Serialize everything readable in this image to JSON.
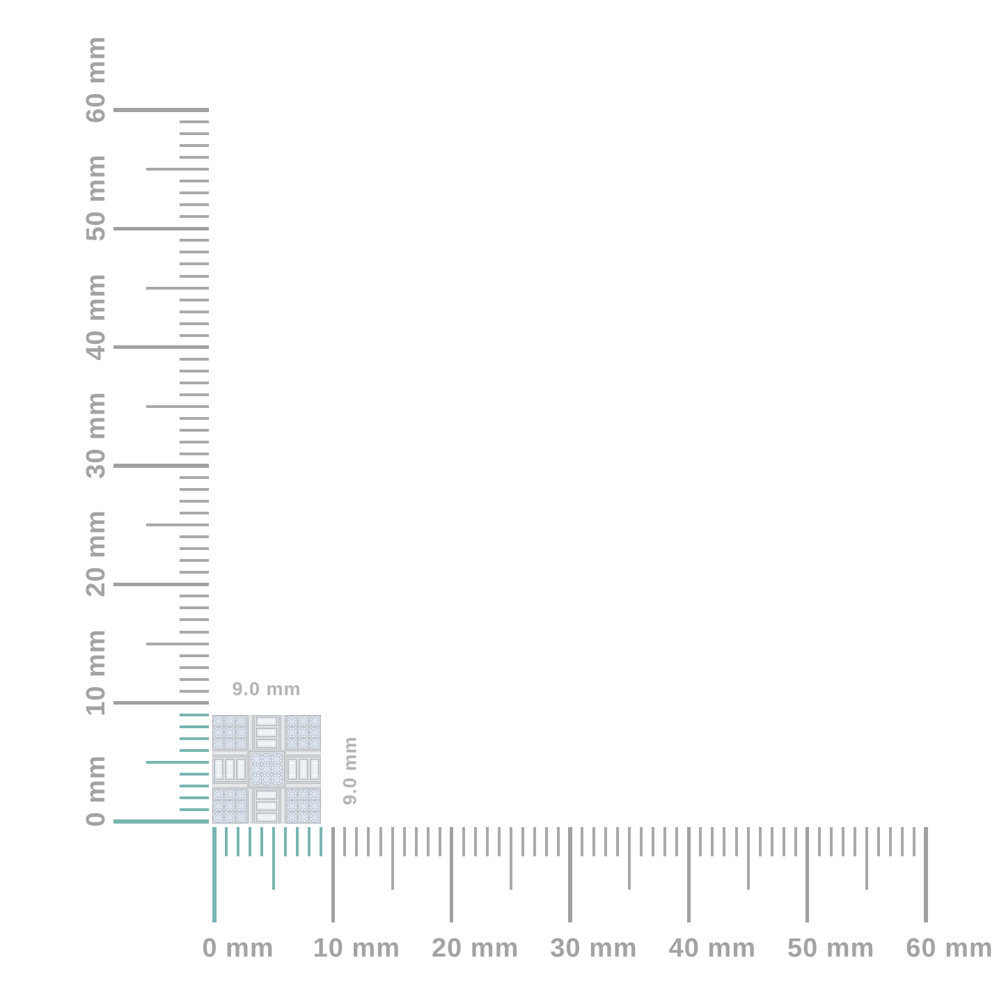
{
  "product": {
    "width_label": "9.0 mm",
    "height_label": "9.0 mm",
    "width_mm": 9.0,
    "height_mm": 9.0
  },
  "rulers": {
    "unit": "mm",
    "max_mm": 60,
    "tick_step_mm": 1,
    "half_tick_every_mm": 5,
    "major_tick_every_mm": 10,
    "highlight_extent_mm": 9,
    "horizontal_labels": [
      "0 mm",
      "10 mm",
      "20 mm",
      "30 mm",
      "40 mm",
      "50 mm",
      "60 mm"
    ],
    "vertical_labels": [
      "0 mm",
      "10 mm",
      "20 mm",
      "30 mm",
      "40 mm",
      "50 mm",
      "60 mm"
    ],
    "colors": {
      "tick": "#a9a9a9",
      "major_tick": "#a0a0a0",
      "highlight": "#79b5b0",
      "label": "#a3a3a3",
      "dimension_label": "#b4b4b4"
    }
  }
}
